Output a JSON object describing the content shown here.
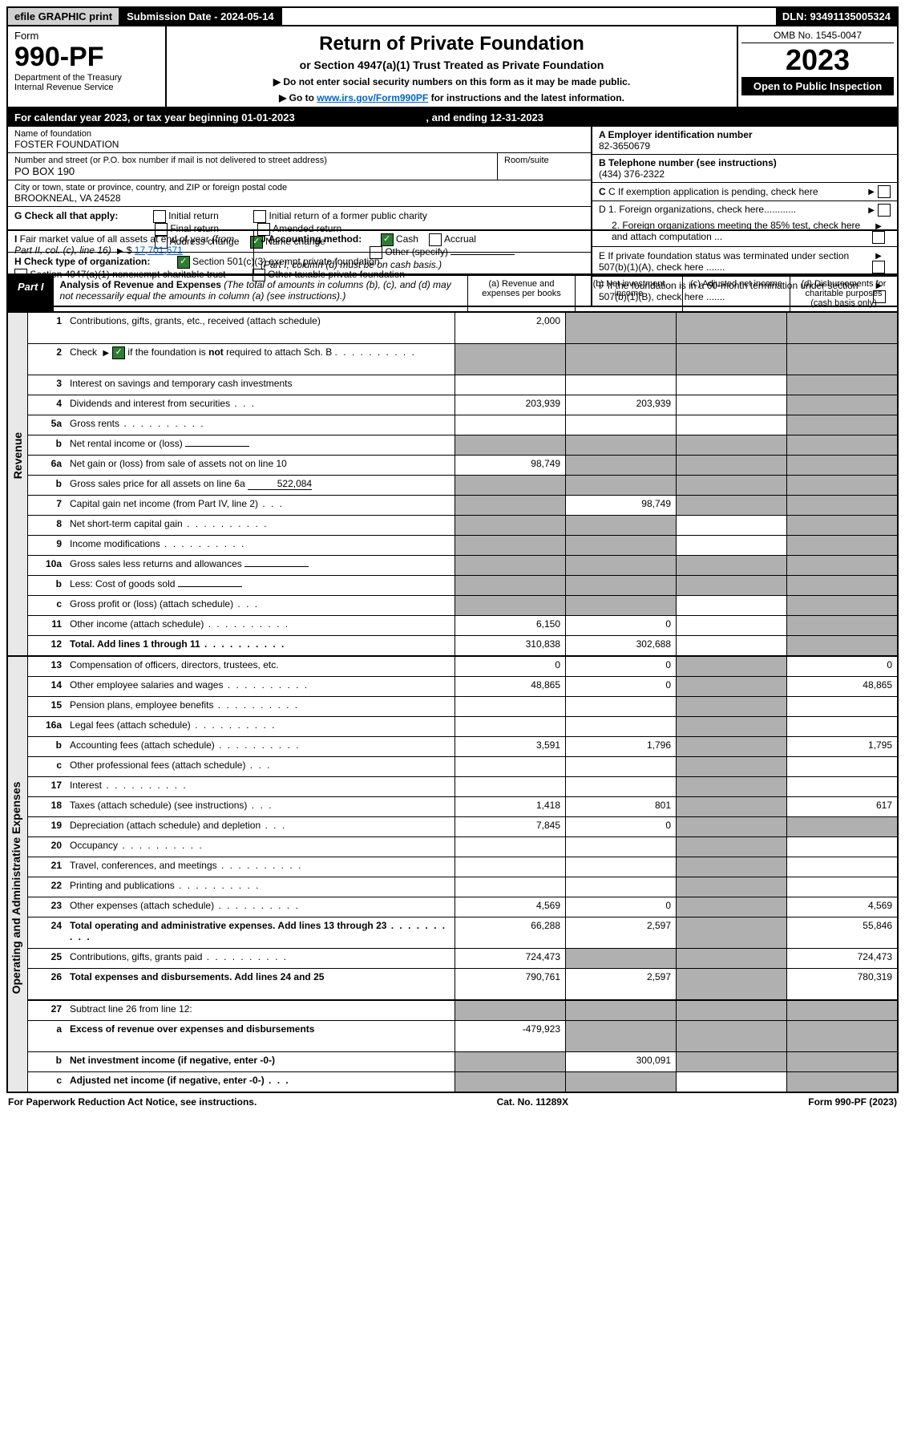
{
  "top": {
    "efile": "efile GRAPHIC print",
    "sub_date_label": "Submission Date - 2024-05-14",
    "dln": "DLN: 93491135005324"
  },
  "header": {
    "form_label": "Form",
    "form_num": "990-PF",
    "dept": "Department of the Treasury",
    "irs": "Internal Revenue Service",
    "title": "Return of Private Foundation",
    "subtitle": "or Section 4947(a)(1) Trust Treated as Private Foundation",
    "note1": "▶ Do not enter social security numbers on this form as it may be made public.",
    "note2_pre": "▶ Go to ",
    "note2_link": "www.irs.gov/Form990PF",
    "note2_post": " for instructions and the latest information.",
    "omb": "OMB No. 1545-0047",
    "year": "2023",
    "open": "Open to Public Inspection"
  },
  "cal": {
    "text_pre": "For calendar year 2023, or tax year beginning 01-01-2023",
    "text_mid": ", and ending 12-31-2023"
  },
  "info": {
    "name_label": "Name of foundation",
    "name": "FOSTER FOUNDATION",
    "addr_label": "Number and street (or P.O. box number if mail is not delivered to street address)",
    "addr": "PO BOX 190",
    "room_label": "Room/suite",
    "city_label": "City or town, state or province, country, and ZIP or foreign postal code",
    "city": "BROOKNEAL, VA  24528",
    "a_label": "A Employer identification number",
    "a_val": "82-3650679",
    "b_label": "B Telephone number (see instructions)",
    "b_val": "(434) 376-2322",
    "c_label": "C If exemption application is pending, check here",
    "d1": "D 1. Foreign organizations, check here............",
    "d2": "2. Foreign organizations meeting the 85% test, check here and attach computation ...",
    "e": "E  If private foundation status was terminated under section 507(b)(1)(A), check here .......",
    "f": "F  If the foundation is in a 60-month termination under section 507(b)(1)(B), check here .......",
    "g_label": "G Check all that apply:",
    "g1": "Initial return",
    "g2": "Final return",
    "g3": "Address change",
    "g4": "Initial return of a former public charity",
    "g5": "Amended return",
    "g6": "Name change",
    "h_label": "H Check type of organization:",
    "h1": "Section 501(c)(3) exempt private foundation",
    "h2": "Section 4947(a)(1) nonexempt charitable trust",
    "h3": "Other taxable private foundation",
    "i_label": "I Fair market value of all assets at end of year (from Part II, col. (c), line 16)",
    "i_val": "17,701,671",
    "j_label": "J Accounting method:",
    "j1": "Cash",
    "j2": "Accrual",
    "j3": "Other (specify)",
    "j_note": "(Part I, column (d) must be on cash basis.)"
  },
  "part1": {
    "label": "Part I",
    "title": "Analysis of Revenue and Expenses",
    "title_note": "(The total of amounts in columns (b), (c), and (d) may not necessarily equal the amounts in column (a) (see instructions).)",
    "col_a": "(a) Revenue and expenses per books",
    "col_b": "(b) Net investment income",
    "col_c": "(c) Adjusted net income",
    "col_d": "(d) Disbursements for charitable purposes (cash basis only)",
    "side_rev": "Revenue",
    "side_exp": "Operating and Administrative Expenses"
  },
  "rows": [
    {
      "n": "1",
      "d": "Contributions, gifts, grants, etc., received (attach schedule)",
      "a": "2,000",
      "b": "shaded",
      "c": "shaded",
      "dd": "shaded",
      "tall": true
    },
    {
      "n": "2",
      "d": "Check ▶ ☑ if the foundation is not required to attach Sch. B",
      "a": "shaded",
      "b": "shaded",
      "c": "shaded",
      "dd": "shaded",
      "tall": true,
      "dots": true,
      "checkmark": true
    },
    {
      "n": "3",
      "d": "Interest on savings and temporary cash investments",
      "a": "",
      "b": "",
      "c": "",
      "dd": "shaded"
    },
    {
      "n": "4",
      "d": "Dividends and interest from securities",
      "a": "203,939",
      "b": "203,939",
      "c": "",
      "dd": "shaded",
      "dots": "short"
    },
    {
      "n": "5a",
      "d": "Gross rents",
      "a": "",
      "b": "",
      "c": "",
      "dd": "shaded",
      "dots": true
    },
    {
      "n": "b",
      "d": "Net rental income or (loss)",
      "a": "shaded",
      "b": "shaded",
      "c": "shaded",
      "dd": "shaded",
      "inline": true
    },
    {
      "n": "6a",
      "d": "Net gain or (loss) from sale of assets not on line 10",
      "a": "98,749",
      "b": "shaded",
      "c": "shaded",
      "dd": "shaded"
    },
    {
      "n": "b",
      "d": "Gross sales price for all assets on line 6a",
      "a": "shaded",
      "b": "shaded",
      "c": "shaded",
      "dd": "shaded",
      "inline": true,
      "inline_val": "522,084"
    },
    {
      "n": "7",
      "d": "Capital gain net income (from Part IV, line 2)",
      "a": "shaded",
      "b": "98,749",
      "c": "shaded",
      "dd": "shaded",
      "dots": "short"
    },
    {
      "n": "8",
      "d": "Net short-term capital gain",
      "a": "shaded",
      "b": "shaded",
      "c": "",
      "dd": "shaded",
      "dots": true
    },
    {
      "n": "9",
      "d": "Income modifications",
      "a": "shaded",
      "b": "shaded",
      "c": "",
      "dd": "shaded",
      "dots": true
    },
    {
      "n": "10a",
      "d": "Gross sales less returns and allowances",
      "a": "shaded",
      "b": "shaded",
      "c": "shaded",
      "dd": "shaded",
      "inline": true
    },
    {
      "n": "b",
      "d": "Less: Cost of goods sold",
      "a": "shaded",
      "b": "shaded",
      "c": "shaded",
      "dd": "shaded",
      "dots": "short",
      "inline": true
    },
    {
      "n": "c",
      "d": "Gross profit or (loss) (attach schedule)",
      "a": "shaded",
      "b": "shaded",
      "c": "",
      "dd": "shaded",
      "dots": "short"
    },
    {
      "n": "11",
      "d": "Other income (attach schedule)",
      "a": "6,150",
      "b": "0",
      "c": "",
      "dd": "shaded",
      "dots": true
    },
    {
      "n": "12",
      "d": "Total. Add lines 1 through 11",
      "a": "310,838",
      "b": "302,688",
      "c": "",
      "dd": "shaded",
      "bold": true,
      "dots": true,
      "divider": true
    }
  ],
  "exp_rows": [
    {
      "n": "13",
      "d": "Compensation of officers, directors, trustees, etc.",
      "a": "0",
      "b": "0",
      "c": "shaded",
      "dd": "0"
    },
    {
      "n": "14",
      "d": "Other employee salaries and wages",
      "a": "48,865",
      "b": "0",
      "c": "shaded",
      "dd": "48,865",
      "dots": true
    },
    {
      "n": "15",
      "d": "Pension plans, employee benefits",
      "a": "",
      "b": "",
      "c": "shaded",
      "dd": "",
      "dots": true
    },
    {
      "n": "16a",
      "d": "Legal fees (attach schedule)",
      "a": "",
      "b": "",
      "c": "shaded",
      "dd": "",
      "dots": true
    },
    {
      "n": "b",
      "d": "Accounting fees (attach schedule)",
      "a": "3,591",
      "b": "1,796",
      "c": "shaded",
      "dd": "1,795",
      "dots": true
    },
    {
      "n": "c",
      "d": "Other professional fees (attach schedule)",
      "a": "",
      "b": "",
      "c": "shaded",
      "dd": "",
      "dots": "short"
    },
    {
      "n": "17",
      "d": "Interest",
      "a": "",
      "b": "",
      "c": "shaded",
      "dd": "",
      "dots": true
    },
    {
      "n": "18",
      "d": "Taxes (attach schedule) (see instructions)",
      "a": "1,418",
      "b": "801",
      "c": "shaded",
      "dd": "617",
      "dots": "short"
    },
    {
      "n": "19",
      "d": "Depreciation (attach schedule) and depletion",
      "a": "7,845",
      "b": "0",
      "c": "shaded",
      "dd": "shaded",
      "dots": "short"
    },
    {
      "n": "20",
      "d": "Occupancy",
      "a": "",
      "b": "",
      "c": "shaded",
      "dd": "",
      "dots": true
    },
    {
      "n": "21",
      "d": "Travel, conferences, and meetings",
      "a": "",
      "b": "",
      "c": "shaded",
      "dd": "",
      "dots": true
    },
    {
      "n": "22",
      "d": "Printing and publications",
      "a": "",
      "b": "",
      "c": "shaded",
      "dd": "",
      "dots": true
    },
    {
      "n": "23",
      "d": "Other expenses (attach schedule)",
      "a": "4,569",
      "b": "0",
      "c": "shaded",
      "dd": "4,569",
      "dots": true
    },
    {
      "n": "24",
      "d": "Total operating and administrative expenses. Add lines 13 through 23",
      "a": "66,288",
      "b": "2,597",
      "c": "shaded",
      "dd": "55,846",
      "bold": true,
      "dots": true,
      "tall": true
    },
    {
      "n": "25",
      "d": "Contributions, gifts, grants paid",
      "a": "724,473",
      "b": "shaded",
      "c": "shaded",
      "dd": "724,473",
      "dots": true
    },
    {
      "n": "26",
      "d": "Total expenses and disbursements. Add lines 24 and 25",
      "a": "790,761",
      "b": "2,597",
      "c": "shaded",
      "dd": "780,319",
      "bold": true,
      "tall": true,
      "divider": true
    },
    {
      "n": "27",
      "d": "Subtract line 26 from line 12:",
      "a": "shaded",
      "b": "shaded",
      "c": "shaded",
      "dd": "shaded"
    },
    {
      "n": "a",
      "d": "Excess of revenue over expenses and disbursements",
      "a": "-479,923",
      "b": "shaded",
      "c": "shaded",
      "dd": "shaded",
      "bold": true,
      "tall": true
    },
    {
      "n": "b",
      "d": "Net investment income (if negative, enter -0-)",
      "a": "shaded",
      "b": "300,091",
      "c": "shaded",
      "dd": "shaded",
      "bold": true
    },
    {
      "n": "c",
      "d": "Adjusted net income (if negative, enter -0-)",
      "a": "shaded",
      "b": "shaded",
      "c": "",
      "dd": "shaded",
      "bold": true,
      "dots": "short"
    }
  ],
  "footer": {
    "left": "For Paperwork Reduction Act Notice, see instructions.",
    "mid": "Cat. No. 11289X",
    "right": "Form 990-PF (2023)"
  }
}
